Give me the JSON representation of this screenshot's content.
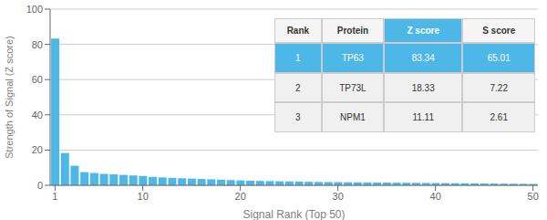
{
  "chart_data": {
    "type": "bar",
    "xlabel": "Signal Rank (Top 50)",
    "ylabel": "Strength of Signal (Z score)",
    "x": [
      1,
      2,
      3,
      4,
      5,
      6,
      7,
      8,
      9,
      10,
      11,
      12,
      13,
      14,
      15,
      16,
      17,
      18,
      19,
      20,
      21,
      22,
      23,
      24,
      25,
      26,
      27,
      28,
      29,
      30,
      31,
      32,
      33,
      34,
      35,
      36,
      37,
      38,
      39,
      40,
      41,
      42,
      43,
      44,
      45,
      46,
      47,
      48,
      49,
      50
    ],
    "values": [
      83.34,
      18.33,
      11.11,
      7.5,
      7.0,
      6.5,
      6.2,
      5.9,
      5.6,
      5.3,
      4.8,
      4.5,
      4.2,
      4.0,
      3.8,
      3.6,
      3.4,
      3.2,
      3.0,
      2.8,
      2.6,
      2.5,
      2.4,
      2.3,
      2.2,
      2.1,
      2.0,
      1.9,
      1.85,
      1.8,
      1.75,
      1.7,
      1.65,
      1.6,
      1.55,
      1.5,
      1.45,
      1.4,
      1.35,
      1.3,
      1.25,
      1.2,
      1.15,
      1.1,
      1.05,
      1.0,
      0.95,
      0.9,
      0.85,
      0.8
    ],
    "color": "#4db8e8",
    "xlim": [
      0.5,
      50.5
    ],
    "xticks": [
      1,
      10,
      20,
      30,
      40,
      50
    ],
    "ylim": [
      0,
      100
    ],
    "yticks": [
      0,
      20,
      40,
      60,
      80,
      100
    ],
    "grid": true,
    "table": {
      "headers": [
        "Rank",
        "Protein",
        "Z score",
        "S score"
      ],
      "rows": [
        [
          "1",
          "TP63",
          "83.34",
          "65.01"
        ],
        [
          "2",
          "TP73L",
          "18.33",
          "7.22"
        ],
        [
          "3",
          "NPM1",
          "11.11",
          "2.61"
        ]
      ]
    }
  }
}
